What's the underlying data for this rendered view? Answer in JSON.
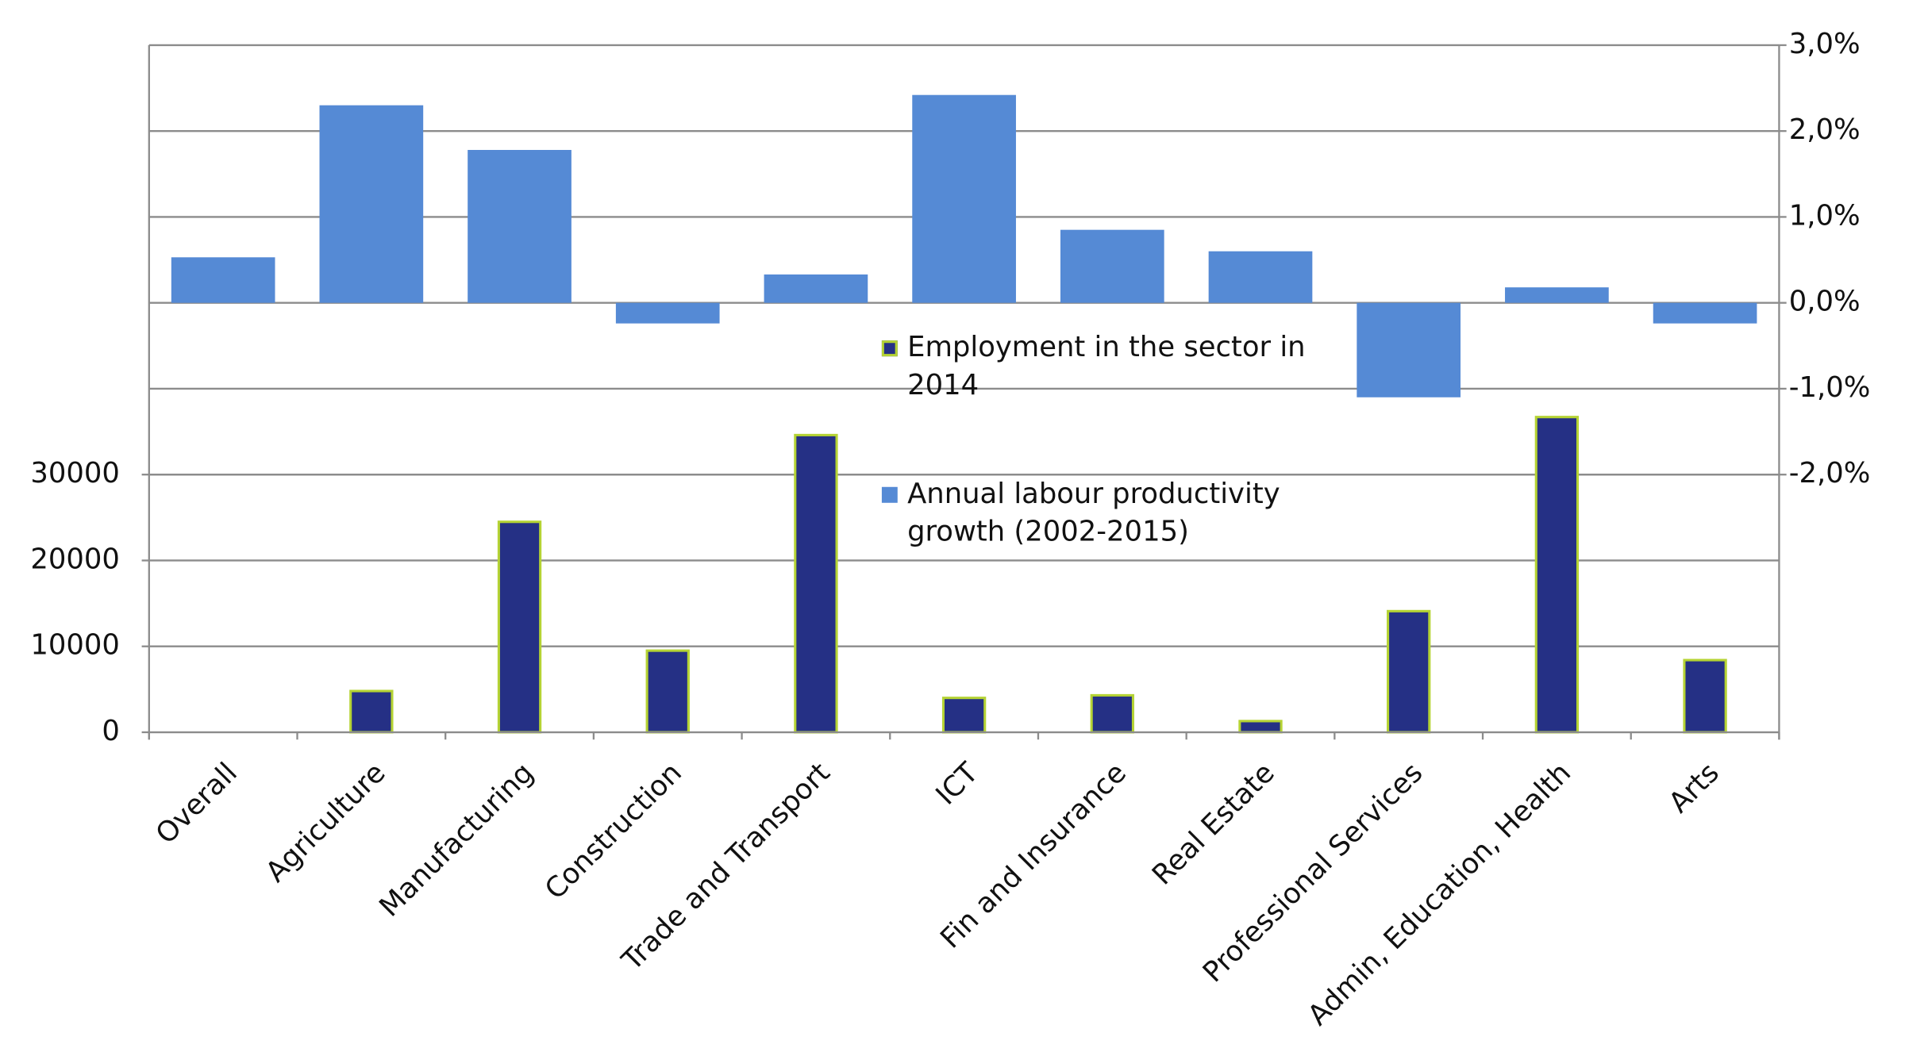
{
  "chart_data": {
    "type": "bar",
    "categories": [
      "Overall",
      "Agriculture",
      "Manufacturing",
      "Construction",
      "Trade and Transport",
      "ICT",
      "Fin and Insurance",
      "Real Estate",
      "Professional Services",
      "Admin, Education, Health",
      "Arts"
    ],
    "series": [
      {
        "name": "Employment in the sector in 2014",
        "color": "#253085",
        "edgecolor": "#b5d334",
        "axis": "y",
        "values": [
          0,
          4800,
          24500,
          9500,
          34600,
          4000,
          4300,
          1300,
          14100,
          36700,
          8400
        ]
      },
      {
        "name": "Annual labour productivity growth (2002-2015)",
        "color": "#558ad5",
        "axis": "y2",
        "values": [
          0.53,
          2.3,
          1.78,
          -0.24,
          0.33,
          2.42,
          0.85,
          0.6,
          -1.1,
          0.18,
          -0.24
        ]
      }
    ],
    "ylim": [
      0,
      80000
    ],
    "yticks": [
      0,
      10000,
      20000,
      30000
    ],
    "y2lim": [
      -5,
      3
    ],
    "y2ticks": [
      {
        "value": -2,
        "label": "-2,0%"
      },
      {
        "value": -1,
        "label": "-1,0%"
      },
      {
        "value": 0,
        "label": "0,0%"
      },
      {
        "value": 1,
        "label": "1,0%"
      },
      {
        "value": 2,
        "label": "2,0%"
      },
      {
        "value": 3,
        "label": "3,0%"
      }
    ],
    "grid": true
  }
}
